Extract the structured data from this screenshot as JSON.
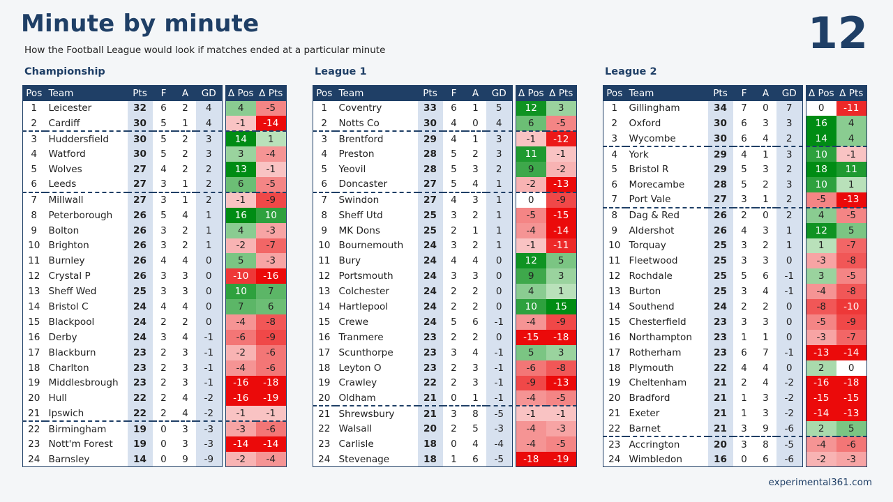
{
  "header": {
    "title": "Minute by minute",
    "subtitle": "How the Football League would look if matches ended at a particular minute",
    "minute": "12",
    "credit": "experimental361.com"
  },
  "columns": [
    "Pos",
    "Team",
    "Pts",
    "F",
    "A",
    "GD",
    "Δ Pos",
    "Δ Pts"
  ],
  "leagues": [
    {
      "name": "Championship",
      "separators_after": [
        2,
        6,
        21
      ],
      "rows": [
        [
          1,
          "Leicester",
          32,
          6,
          2,
          4,
          4,
          -5
        ],
        [
          2,
          "Cardiff",
          30,
          5,
          1,
          4,
          -1,
          -14
        ],
        [
          3,
          "Huddersfield",
          30,
          5,
          2,
          3,
          14,
          1
        ],
        [
          4,
          "Watford",
          30,
          5,
          2,
          3,
          3,
          -4
        ],
        [
          5,
          "Wolves",
          27,
          4,
          2,
          2,
          13,
          -1
        ],
        [
          6,
          "Leeds",
          27,
          3,
          1,
          2,
          6,
          -5
        ],
        [
          7,
          "Millwall",
          27,
          3,
          1,
          2,
          -1,
          -9
        ],
        [
          8,
          "Peterborough",
          26,
          5,
          4,
          1,
          16,
          10
        ],
        [
          9,
          "Bolton",
          26,
          3,
          2,
          1,
          4,
          -3
        ],
        [
          10,
          "Brighton",
          26,
          3,
          2,
          1,
          -2,
          -7
        ],
        [
          11,
          "Burnley",
          26,
          4,
          4,
          0,
          5,
          -3
        ],
        [
          12,
          "Crystal P",
          26,
          3,
          3,
          0,
          -10,
          -16
        ],
        [
          13,
          "Sheff Wed",
          25,
          3,
          3,
          0,
          10,
          7
        ],
        [
          14,
          "Bristol C",
          24,
          4,
          4,
          0,
          7,
          6
        ],
        [
          15,
          "Blackpool",
          24,
          2,
          2,
          0,
          -4,
          -8
        ],
        [
          16,
          "Derby",
          24,
          3,
          4,
          -1,
          -6,
          -9
        ],
        [
          17,
          "Blackburn",
          23,
          2,
          3,
          -1,
          -2,
          -6
        ],
        [
          18,
          "Charlton",
          23,
          2,
          3,
          -1,
          -4,
          -6
        ],
        [
          19,
          "Middlesbrough",
          23,
          2,
          3,
          -1,
          -16,
          -18
        ],
        [
          20,
          "Hull",
          22,
          2,
          4,
          -2,
          -16,
          -19
        ],
        [
          21,
          "Ipswich",
          22,
          2,
          4,
          -2,
          -1,
          -1
        ],
        [
          22,
          "Birmingham",
          19,
          0,
          3,
          -3,
          -3,
          -6
        ],
        [
          23,
          "Nott'm Forest",
          19,
          0,
          3,
          -3,
          -14,
          -14
        ],
        [
          24,
          "Barnsley",
          14,
          0,
          9,
          -9,
          -2,
          -4
        ]
      ]
    },
    {
      "name": "League 1",
      "separators_after": [
        2,
        6,
        20
      ],
      "rows": [
        [
          1,
          "Coventry",
          33,
          6,
          1,
          5,
          12,
          3
        ],
        [
          2,
          "Notts Co",
          30,
          4,
          0,
          4,
          6,
          -5
        ],
        [
          3,
          "Brentford",
          29,
          4,
          1,
          3,
          -1,
          -12
        ],
        [
          4,
          "Preston",
          28,
          5,
          2,
          3,
          11,
          -1
        ],
        [
          5,
          "Yeovil",
          28,
          5,
          3,
          2,
          9,
          -2
        ],
        [
          6,
          "Doncaster",
          27,
          5,
          4,
          1,
          -2,
          -13
        ],
        [
          7,
          "Swindon",
          27,
          4,
          3,
          1,
          0,
          -9
        ],
        [
          8,
          "Sheff Utd",
          25,
          3,
          2,
          1,
          -5,
          -15
        ],
        [
          9,
          "MK Dons",
          25,
          2,
          1,
          1,
          -4,
          -14
        ],
        [
          10,
          "Bournemouth",
          24,
          3,
          2,
          1,
          -1,
          -11
        ],
        [
          11,
          "Bury",
          24,
          4,
          4,
          0,
          12,
          5
        ],
        [
          12,
          "Portsmouth",
          24,
          3,
          3,
          0,
          9,
          3
        ],
        [
          13,
          "Colchester",
          24,
          2,
          2,
          0,
          4,
          1
        ],
        [
          14,
          "Hartlepool",
          24,
          2,
          2,
          0,
          10,
          15
        ],
        [
          15,
          "Crewe",
          24,
          5,
          6,
          -1,
          -4,
          -9
        ],
        [
          16,
          "Tranmere",
          23,
          2,
          2,
          0,
          -15,
          -18
        ],
        [
          17,
          "Scunthorpe",
          23,
          3,
          4,
          -1,
          5,
          3
        ],
        [
          18,
          "Leyton O",
          23,
          2,
          3,
          -1,
          -6,
          -8
        ],
        [
          19,
          "Crawley",
          22,
          2,
          3,
          -1,
          -9,
          -13
        ],
        [
          20,
          "Oldham",
          21,
          0,
          1,
          -1,
          -4,
          -5
        ],
        [
          21,
          "Shrewsbury",
          21,
          3,
          8,
          -5,
          -1,
          -1
        ],
        [
          22,
          "Walsall",
          20,
          2,
          5,
          -3,
          -4,
          -3
        ],
        [
          23,
          "Carlisle",
          18,
          0,
          4,
          -4,
          -4,
          -5
        ],
        [
          24,
          "Stevenage",
          18,
          1,
          6,
          -5,
          -18,
          -19
        ]
      ]
    },
    {
      "name": "League 2",
      "separators_after": [
        3,
        7,
        22
      ],
      "rows": [
        [
          1,
          "Gillingham",
          34,
          7,
          0,
          7,
          0,
          -11
        ],
        [
          2,
          "Oxford",
          30,
          6,
          3,
          3,
          16,
          4
        ],
        [
          3,
          "Wycombe",
          30,
          6,
          4,
          2,
          14,
          4
        ],
        [
          4,
          "York",
          29,
          4,
          1,
          3,
          10,
          -1
        ],
        [
          5,
          "Bristol R",
          29,
          5,
          3,
          2,
          18,
          11
        ],
        [
          6,
          "Morecambe",
          28,
          5,
          2,
          3,
          10,
          1
        ],
        [
          7,
          "Port Vale",
          27,
          3,
          1,
          2,
          -5,
          -13
        ],
        [
          8,
          "Dag & Red",
          26,
          2,
          0,
          2,
          4,
          -5
        ],
        [
          9,
          "Aldershot",
          26,
          4,
          3,
          1,
          12,
          5
        ],
        [
          10,
          "Torquay",
          25,
          3,
          2,
          1,
          1,
          -7
        ],
        [
          11,
          "Fleetwood",
          25,
          3,
          3,
          0,
          -3,
          -8
        ],
        [
          12,
          "Rochdale",
          25,
          5,
          6,
          -1,
          3,
          -5
        ],
        [
          13,
          "Burton",
          25,
          3,
          4,
          -1,
          -4,
          -8
        ],
        [
          14,
          "Southend",
          24,
          2,
          2,
          0,
          -8,
          -10
        ],
        [
          15,
          "Chesterfield",
          23,
          3,
          3,
          0,
          -5,
          -9
        ],
        [
          16,
          "Northampton",
          23,
          1,
          1,
          0,
          -3,
          -7
        ],
        [
          17,
          "Rotherham",
          23,
          6,
          7,
          -1,
          -13,
          -14
        ],
        [
          18,
          "Plymouth",
          22,
          4,
          4,
          0,
          2,
          0
        ],
        [
          19,
          "Cheltenham",
          21,
          2,
          4,
          -2,
          -16,
          -18
        ],
        [
          20,
          "Bradford",
          21,
          1,
          3,
          -2,
          -15,
          -15
        ],
        [
          21,
          "Exeter",
          21,
          1,
          3,
          -2,
          -14,
          -13
        ],
        [
          22,
          "Barnet",
          21,
          3,
          9,
          -6,
          2,
          5
        ],
        [
          23,
          "Accrington",
          20,
          3,
          8,
          -5,
          -4,
          -6
        ],
        [
          24,
          "Wimbledon",
          16,
          0,
          6,
          -6,
          -2,
          -3
        ]
      ]
    }
  ]
}
